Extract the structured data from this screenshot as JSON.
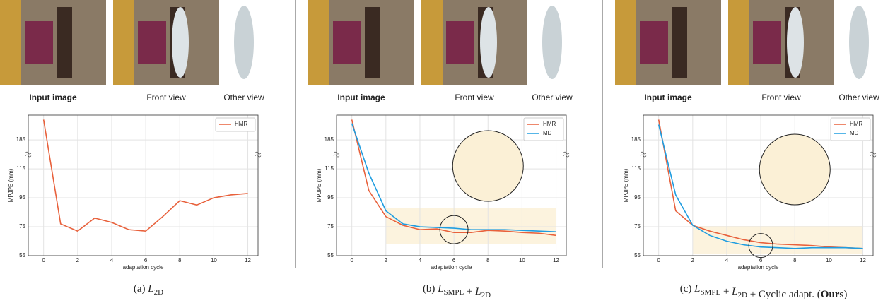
{
  "panels": [
    {
      "image_labels": [
        "Input image",
        "Front view",
        "Other view"
      ],
      "caption": [
        {
          "text": "(a) "
        },
        {
          "text": "L",
          "sub": "2D"
        }
      ]
    },
    {
      "image_labels": [
        "Input image",
        "Front view",
        "Other view"
      ],
      "caption": [
        {
          "text": "(b) "
        },
        {
          "text": "L",
          "sub": "SMPL"
        },
        {
          "text": " + "
        },
        {
          "text": "L",
          "sub": "2D"
        }
      ]
    },
    {
      "image_labels": [
        "Input image",
        "Front view",
        "Other view"
      ],
      "caption": [
        {
          "text": "(c) "
        },
        {
          "text": "L",
          "sub": "SMPL"
        },
        {
          "text": " + "
        },
        {
          "text": "L",
          "sub": "2D"
        },
        {
          "text": " + Cyclic adapt. ("
        },
        {
          "text": "Ours",
          "bold": true
        },
        {
          "text": ")"
        }
      ]
    }
  ],
  "chart_data": [
    {
      "type": "line",
      "xlabel": "adaptation cycle",
      "ylabel": "MPJPE (mm)",
      "grid": true,
      "legend": "upper right",
      "x": [
        0,
        1,
        2,
        3,
        4,
        5,
        6,
        7,
        8,
        9,
        10,
        11,
        12
      ],
      "xlim": [
        -0.9,
        12.6
      ],
      "xticks": [
        0,
        2,
        4,
        6,
        8,
        10,
        12
      ],
      "ylim": [
        55,
        245
      ],
      "yticks": [
        55,
        75,
        95,
        115,
        185
      ],
      "series": [
        {
          "name": "HMR",
          "color": "#e8613c",
          "values": [
            234,
            77,
            72,
            81,
            78,
            73,
            72,
            82,
            93,
            90,
            95,
            97,
            98
          ]
        }
      ]
    },
    {
      "type": "line",
      "xlabel": "adaptation cycle",
      "ylabel": "MPJPE (mm)",
      "grid": true,
      "legend": "upper right",
      "x": [
        0,
        1,
        2,
        3,
        4,
        5,
        6,
        7,
        8,
        9,
        10,
        11,
        12
      ],
      "xlim": [
        -0.9,
        12.6
      ],
      "xticks": [
        0,
        2,
        4,
        6,
        8,
        10,
        12
      ],
      "ylim": [
        55,
        245
      ],
      "yticks": [
        55,
        75,
        95,
        115,
        185
      ],
      "series": [
        {
          "name": "HMR",
          "color": "#e8613c",
          "values": [
            234,
            100,
            82,
            76,
            73,
            73.5,
            71,
            71,
            72.5,
            72,
            71,
            70.5,
            69
          ]
        },
        {
          "name": "MD",
          "color": "#1f9de0",
          "values": [
            225,
            112,
            86,
            77,
            75,
            74.5,
            74,
            73,
            73,
            73,
            72.5,
            72,
            71.5
          ]
        }
      ]
    },
    {
      "type": "line",
      "xlabel": "adaptation cycle",
      "ylabel": "MPJPE (mm)",
      "grid": true,
      "legend": "upper right",
      "x": [
        0,
        1,
        2,
        3,
        4,
        5,
        6,
        7,
        8,
        9,
        10,
        11,
        12
      ],
      "xlim": [
        -0.9,
        12.6
      ],
      "xticks": [
        0,
        2,
        4,
        6,
        8,
        10,
        12
      ],
      "ylim": [
        55,
        245
      ],
      "yticks": [
        55,
        75,
        95,
        115,
        185
      ],
      "series": [
        {
          "name": "HMR",
          "color": "#e8613c",
          "values": [
            234,
            86,
            76,
            72,
            69,
            66,
            64,
            63,
            62.5,
            62,
            61,
            60.5,
            60
          ]
        },
        {
          "name": "MD",
          "color": "#1f9de0",
          "values": [
            222,
            97,
            76,
            69,
            65,
            62.5,
            61,
            60.5,
            60,
            60.5,
            60.5,
            60.5,
            60
          ]
        }
      ]
    }
  ]
}
